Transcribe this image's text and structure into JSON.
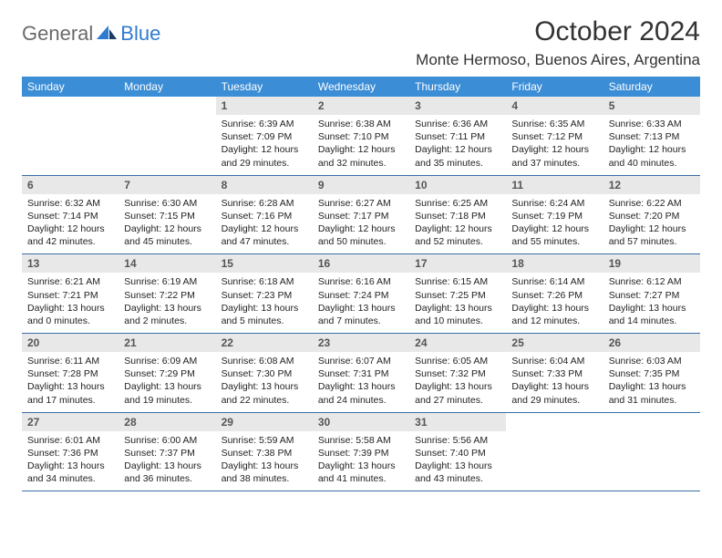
{
  "brand": {
    "text1": "General",
    "text2": "Blue"
  },
  "title": "October 2024",
  "location": "Monte Hermoso, Buenos Aires, Argentina",
  "colors": {
    "header_bg": "#3b8dd6",
    "daynum_bg": "#e8e8e8",
    "week_border": "#3b6fa8",
    "brand_gray": "#6b6b6b",
    "brand_blue": "#2f7bd0"
  },
  "weekdays": [
    "Sunday",
    "Monday",
    "Tuesday",
    "Wednesday",
    "Thursday",
    "Friday",
    "Saturday"
  ],
  "weeks": [
    [
      null,
      null,
      {
        "n": "1",
        "sr": "6:39 AM",
        "ss": "7:09 PM",
        "dl": "12 hours and 29 minutes."
      },
      {
        "n": "2",
        "sr": "6:38 AM",
        "ss": "7:10 PM",
        "dl": "12 hours and 32 minutes."
      },
      {
        "n": "3",
        "sr": "6:36 AM",
        "ss": "7:11 PM",
        "dl": "12 hours and 35 minutes."
      },
      {
        "n": "4",
        "sr": "6:35 AM",
        "ss": "7:12 PM",
        "dl": "12 hours and 37 minutes."
      },
      {
        "n": "5",
        "sr": "6:33 AM",
        "ss": "7:13 PM",
        "dl": "12 hours and 40 minutes."
      }
    ],
    [
      {
        "n": "6",
        "sr": "6:32 AM",
        "ss": "7:14 PM",
        "dl": "12 hours and 42 minutes."
      },
      {
        "n": "7",
        "sr": "6:30 AM",
        "ss": "7:15 PM",
        "dl": "12 hours and 45 minutes."
      },
      {
        "n": "8",
        "sr": "6:28 AM",
        "ss": "7:16 PM",
        "dl": "12 hours and 47 minutes."
      },
      {
        "n": "9",
        "sr": "6:27 AM",
        "ss": "7:17 PM",
        "dl": "12 hours and 50 minutes."
      },
      {
        "n": "10",
        "sr": "6:25 AM",
        "ss": "7:18 PM",
        "dl": "12 hours and 52 minutes."
      },
      {
        "n": "11",
        "sr": "6:24 AM",
        "ss": "7:19 PM",
        "dl": "12 hours and 55 minutes."
      },
      {
        "n": "12",
        "sr": "6:22 AM",
        "ss": "7:20 PM",
        "dl": "12 hours and 57 minutes."
      }
    ],
    [
      {
        "n": "13",
        "sr": "6:21 AM",
        "ss": "7:21 PM",
        "dl": "13 hours and 0 minutes."
      },
      {
        "n": "14",
        "sr": "6:19 AM",
        "ss": "7:22 PM",
        "dl": "13 hours and 2 minutes."
      },
      {
        "n": "15",
        "sr": "6:18 AM",
        "ss": "7:23 PM",
        "dl": "13 hours and 5 minutes."
      },
      {
        "n": "16",
        "sr": "6:16 AM",
        "ss": "7:24 PM",
        "dl": "13 hours and 7 minutes."
      },
      {
        "n": "17",
        "sr": "6:15 AM",
        "ss": "7:25 PM",
        "dl": "13 hours and 10 minutes."
      },
      {
        "n": "18",
        "sr": "6:14 AM",
        "ss": "7:26 PM",
        "dl": "13 hours and 12 minutes."
      },
      {
        "n": "19",
        "sr": "6:12 AM",
        "ss": "7:27 PM",
        "dl": "13 hours and 14 minutes."
      }
    ],
    [
      {
        "n": "20",
        "sr": "6:11 AM",
        "ss": "7:28 PM",
        "dl": "13 hours and 17 minutes."
      },
      {
        "n": "21",
        "sr": "6:09 AM",
        "ss": "7:29 PM",
        "dl": "13 hours and 19 minutes."
      },
      {
        "n": "22",
        "sr": "6:08 AM",
        "ss": "7:30 PM",
        "dl": "13 hours and 22 minutes."
      },
      {
        "n": "23",
        "sr": "6:07 AM",
        "ss": "7:31 PM",
        "dl": "13 hours and 24 minutes."
      },
      {
        "n": "24",
        "sr": "6:05 AM",
        "ss": "7:32 PM",
        "dl": "13 hours and 27 minutes."
      },
      {
        "n": "25",
        "sr": "6:04 AM",
        "ss": "7:33 PM",
        "dl": "13 hours and 29 minutes."
      },
      {
        "n": "26",
        "sr": "6:03 AM",
        "ss": "7:35 PM",
        "dl": "13 hours and 31 minutes."
      }
    ],
    [
      {
        "n": "27",
        "sr": "6:01 AM",
        "ss": "7:36 PM",
        "dl": "13 hours and 34 minutes."
      },
      {
        "n": "28",
        "sr": "6:00 AM",
        "ss": "7:37 PM",
        "dl": "13 hours and 36 minutes."
      },
      {
        "n": "29",
        "sr": "5:59 AM",
        "ss": "7:38 PM",
        "dl": "13 hours and 38 minutes."
      },
      {
        "n": "30",
        "sr": "5:58 AM",
        "ss": "7:39 PM",
        "dl": "13 hours and 41 minutes."
      },
      {
        "n": "31",
        "sr": "5:56 AM",
        "ss": "7:40 PM",
        "dl": "13 hours and 43 minutes."
      },
      null,
      null
    ]
  ],
  "labels": {
    "sunrise": "Sunrise:",
    "sunset": "Sunset:",
    "daylight": "Daylight:"
  }
}
